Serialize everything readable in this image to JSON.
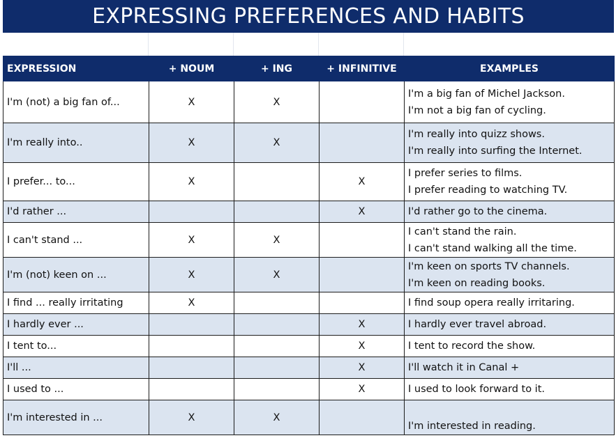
{
  "title": "EXPRESSING PREFERENCES AND HABITS",
  "headers": {
    "expression": "EXPRESSION",
    "noun": "+ NOUM",
    "ing": "+ ING",
    "infinitive": "+ INFINITIVE",
    "examples": "EXAMPLES"
  },
  "rows": [
    {
      "expression": "I'm (not) a big fan of...",
      "noun": "X",
      "ing": "X",
      "infinitive": "",
      "examples": [
        "I'm a big fan of Michel Jackson.",
        "I'm not a big fan of cycling."
      ]
    },
    {
      "expression": "I'm really into..",
      "noun": "X",
      "ing": "X",
      "infinitive": "",
      "examples": [
        "I'm really into quizz shows.",
        "I'm really into surfing the Internet."
      ]
    },
    {
      "expression": "I prefer... to...",
      "noun": "X",
      "ing": "",
      "infinitive": "X",
      "examples": [
        "I prefer series to films.",
        "I prefer reading to watching TV."
      ]
    },
    {
      "expression": "I'd rather ...",
      "noun": "",
      "ing": "",
      "infinitive": "X",
      "examples": [
        "I'd rather go to the cinema."
      ]
    },
    {
      "expression": "I can't stand ...",
      "noun": "X",
      "ing": "X",
      "infinitive": "",
      "examples": [
        "I can't stand the rain.",
        "I can't stand walking all the time."
      ]
    },
    {
      "expression": "I'm (not) keen on ...",
      "noun": "X",
      "ing": "X",
      "infinitive": "",
      "examples": [
        "I'm keen on sports TV channels.",
        "I'm keen on reading books."
      ]
    },
    {
      "expression": "I find ... really irritating",
      "noun": "X",
      "ing": "",
      "infinitive": "",
      "examples": [
        "I find soup opera really irritaring."
      ]
    },
    {
      "expression": "I hardly ever ...",
      "noun": "",
      "ing": "",
      "infinitive": "X",
      "examples": [
        "I hardly ever travel abroad."
      ]
    },
    {
      "expression": "I tent to...",
      "noun": "",
      "ing": "",
      "infinitive": "X",
      "examples": [
        "I tent to record the show."
      ]
    },
    {
      "expression": "I'll ...",
      "noun": "",
      "ing": "",
      "infinitive": "X",
      "examples": [
        "I'll watch it in Canal +"
      ]
    },
    {
      "expression": "I used to ...",
      "noun": "",
      "ing": "",
      "infinitive": "X",
      "examples": [
        "I used to look forward to it."
      ]
    },
    {
      "expression": "I'm interested in ...",
      "noun": "X",
      "ing": "X",
      "infinitive": "",
      "examples": [
        "I'm interested in reading."
      ]
    }
  ],
  "colors": {
    "header_bg": "#0f2c6b",
    "alt_row_bg": "#dbe4f0"
  }
}
